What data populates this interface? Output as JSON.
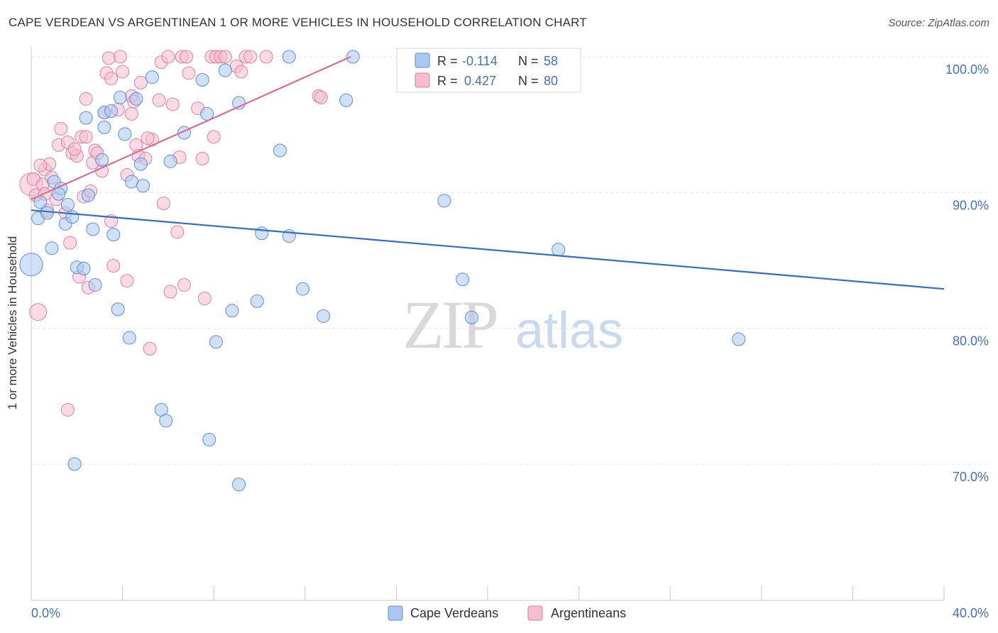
{
  "title": "CAPE VERDEAN VS ARGENTINEAN 1 OR MORE VEHICLES IN HOUSEHOLD CORRELATION CHART",
  "source": "Source: ZipAtlas.com",
  "watermark": {
    "zip": "ZIP",
    "atlas": "atlas"
  },
  "colors": {
    "blue_fill": "#aac8f0",
    "blue_stroke": "#5b8fd6",
    "blue_line": "#2f6fc8",
    "pink_fill": "#f6bdd0",
    "pink_stroke": "#e07fa0",
    "pink_line": "#e06a95",
    "value_text": "#3f72c4",
    "grid": "#e4e4e4"
  },
  "legend": {
    "r_label": "R =",
    "n_label": "N =",
    "rows": [
      {
        "r": "-0.114",
        "n": "58"
      },
      {
        "r": "0.427",
        "n": "80"
      }
    ]
  },
  "bottom_legend": [
    "Cape Verdeans",
    "Argentineans"
  ],
  "chart_data": {
    "type": "scatter",
    "title": "CAPE VERDEAN VS ARGENTINEAN 1 OR MORE VEHICLES IN HOUSEHOLD CORRELATION CHART",
    "ylabel": "1 or more Vehicles in Household",
    "xlabel": "",
    "x_tick_labels": [
      "0.0%",
      "40.0%"
    ],
    "y_tick_labels": [
      "100.0%",
      "90.0%",
      "80.0%",
      "70.0%"
    ],
    "y_ticks": [
      100,
      90,
      80,
      70
    ],
    "xlim": [
      0,
      40
    ],
    "ylim": [
      62,
      103
    ],
    "grid": true,
    "legend_position": "top-center",
    "series": [
      {
        "name": "Cape Verdeans",
        "r": -0.114,
        "n": 58,
        "trend": {
          "x": [
            0,
            40
          ],
          "y": [
            88.7,
            82.9
          ]
        },
        "points": [
          [
            0.0,
            84.7,
            16
          ],
          [
            0.3,
            88.1,
            9
          ],
          [
            0.4,
            89.3,
            9
          ],
          [
            0.7,
            88.5,
            9
          ],
          [
            0.9,
            85.9,
            9
          ],
          [
            1.0,
            90.8,
            9
          ],
          [
            1.3,
            90.3,
            9
          ],
          [
            1.5,
            87.7,
            9
          ],
          [
            1.6,
            89.1,
            9
          ],
          [
            1.8,
            88.2,
            9
          ],
          [
            1.9,
            70.0,
            9
          ],
          [
            2.0,
            84.5,
            9
          ],
          [
            2.3,
            84.4,
            9
          ],
          [
            2.5,
            89.8,
            9
          ],
          [
            2.4,
            95.5,
            9
          ],
          [
            2.7,
            87.3,
            9
          ],
          [
            2.8,
            83.2,
            9
          ],
          [
            3.1,
            92.4,
            9
          ],
          [
            3.2,
            94.8,
            9
          ],
          [
            3.2,
            95.9,
            9
          ],
          [
            3.6,
            86.9,
            9
          ],
          [
            3.8,
            81.4,
            9
          ],
          [
            3.9,
            97.0,
            9
          ],
          [
            4.1,
            94.3,
            9
          ],
          [
            4.3,
            79.3,
            9
          ],
          [
            4.4,
            90.8,
            9
          ],
          [
            4.6,
            96.9,
            9
          ],
          [
            4.8,
            92.1,
            9
          ],
          [
            4.9,
            90.5,
            9
          ],
          [
            5.3,
            98.5,
            9
          ],
          [
            5.7,
            74.0,
            9
          ],
          [
            5.9,
            73.2,
            9
          ],
          [
            6.1,
            92.3,
            9
          ],
          [
            6.7,
            94.4,
            9
          ],
          [
            7.5,
            98.3,
            9
          ],
          [
            7.7,
            95.8,
            9
          ],
          [
            7.8,
            71.8,
            9
          ],
          [
            8.1,
            79.0,
            9
          ],
          [
            8.5,
            99.0,
            9
          ],
          [
            8.8,
            81.3,
            9
          ],
          [
            9.1,
            96.6,
            9
          ],
          [
            9.1,
            68.5,
            9
          ],
          [
            9.9,
            82.0,
            9
          ],
          [
            10.1,
            87.0,
            9
          ],
          [
            10.9,
            93.1,
            9
          ],
          [
            11.3,
            86.8,
            9
          ],
          [
            11.3,
            100.0,
            9
          ],
          [
            11.9,
            82.9,
            9
          ],
          [
            12.8,
            80.9,
            9
          ],
          [
            13.8,
            96.8,
            9
          ],
          [
            14.1,
            100.0,
            9
          ],
          [
            18.1,
            89.4,
            9
          ],
          [
            18.9,
            83.6,
            9
          ],
          [
            23.1,
            85.8,
            9
          ],
          [
            31.0,
            79.2,
            9
          ],
          [
            19.3,
            80.8,
            9
          ],
          [
            3.5,
            96.0,
            9
          ],
          [
            1.2,
            89.9,
            9
          ]
        ]
      },
      {
        "name": "Argentineans",
        "r": 0.427,
        "n": 80,
        "trend": {
          "x": [
            0,
            14.0
          ],
          "y": [
            89.5,
            100.0
          ]
        },
        "points": [
          [
            0.0,
            90.6,
            16
          ],
          [
            0.1,
            91.0,
            9
          ],
          [
            0.2,
            89.8,
            9
          ],
          [
            0.3,
            81.2,
            12
          ],
          [
            0.5,
            90.6,
            9
          ],
          [
            0.6,
            89.9,
            9
          ],
          [
            0.6,
            91.7,
            9
          ],
          [
            0.7,
            88.7,
            9
          ],
          [
            0.8,
            92.1,
            9
          ],
          [
            0.9,
            91.1,
            9
          ],
          [
            1.1,
            89.5,
            9
          ],
          [
            1.2,
            93.5,
            9
          ],
          [
            1.3,
            94.7,
            9
          ],
          [
            1.5,
            88.5,
            9
          ],
          [
            1.6,
            74.0,
            9
          ],
          [
            1.6,
            93.7,
            9
          ],
          [
            1.7,
            86.3,
            9
          ],
          [
            1.8,
            92.9,
            9
          ],
          [
            2.0,
            92.7,
            9
          ],
          [
            2.1,
            83.8,
            9
          ],
          [
            2.2,
            94.1,
            9
          ],
          [
            2.3,
            89.7,
            9
          ],
          [
            2.4,
            94.1,
            9
          ],
          [
            2.4,
            96.9,
            9
          ],
          [
            2.5,
            83.0,
            9
          ],
          [
            2.6,
            90.1,
            9
          ],
          [
            2.7,
            92.2,
            9
          ],
          [
            2.8,
            93.1,
            9
          ],
          [
            3.1,
            91.6,
            9
          ],
          [
            3.2,
            95.9,
            9
          ],
          [
            3.3,
            98.8,
            9
          ],
          [
            3.5,
            98.4,
            9
          ],
          [
            3.5,
            87.9,
            9
          ],
          [
            3.6,
            84.6,
            9
          ],
          [
            3.8,
            96.1,
            9
          ],
          [
            3.9,
            100.0,
            9
          ],
          [
            4.0,
            98.9,
            9
          ],
          [
            4.2,
            83.5,
            9
          ],
          [
            4.2,
            91.3,
            9
          ],
          [
            4.4,
            97.1,
            9
          ],
          [
            4.4,
            95.8,
            9
          ],
          [
            4.5,
            96.7,
            9
          ],
          [
            4.6,
            93.5,
            9
          ],
          [
            4.7,
            92.7,
            9
          ],
          [
            4.8,
            98.1,
            9
          ],
          [
            5.0,
            92.5,
            9
          ],
          [
            5.2,
            78.5,
            9
          ],
          [
            5.3,
            93.9,
            9
          ],
          [
            5.6,
            96.8,
            9
          ],
          [
            5.7,
            99.6,
            9
          ],
          [
            5.8,
            89.2,
            9
          ],
          [
            6.0,
            100.0,
            9
          ],
          [
            6.1,
            82.7,
            9
          ],
          [
            6.2,
            96.5,
            9
          ],
          [
            6.4,
            87.1,
            9
          ],
          [
            6.5,
            92.6,
            9
          ],
          [
            6.6,
            100.0,
            9
          ],
          [
            6.7,
            83.2,
            9
          ],
          [
            6.8,
            100.0,
            9
          ],
          [
            6.9,
            98.8,
            9
          ],
          [
            7.3,
            96.2,
            9
          ],
          [
            7.5,
            92.5,
            9
          ],
          [
            7.6,
            82.2,
            9
          ],
          [
            7.9,
            100.0,
            9
          ],
          [
            8.0,
            94.1,
            9
          ],
          [
            8.1,
            100.0,
            9
          ],
          [
            8.3,
            100.0,
            9
          ],
          [
            8.5,
            100.0,
            9
          ],
          [
            9.0,
            99.3,
            9
          ],
          [
            9.2,
            98.9,
            9
          ],
          [
            9.4,
            100.0,
            9
          ],
          [
            9.6,
            100.0,
            9
          ],
          [
            10.3,
            100.0,
            9
          ],
          [
            12.6,
            97.1,
            9
          ],
          [
            12.7,
            97.0,
            9
          ],
          [
            3.4,
            99.9,
            9
          ],
          [
            2.9,
            92.9,
            9
          ],
          [
            5.1,
            94.0,
            9
          ],
          [
            1.9,
            93.2,
            9
          ],
          [
            0.4,
            92.0,
            9
          ]
        ]
      }
    ]
  }
}
